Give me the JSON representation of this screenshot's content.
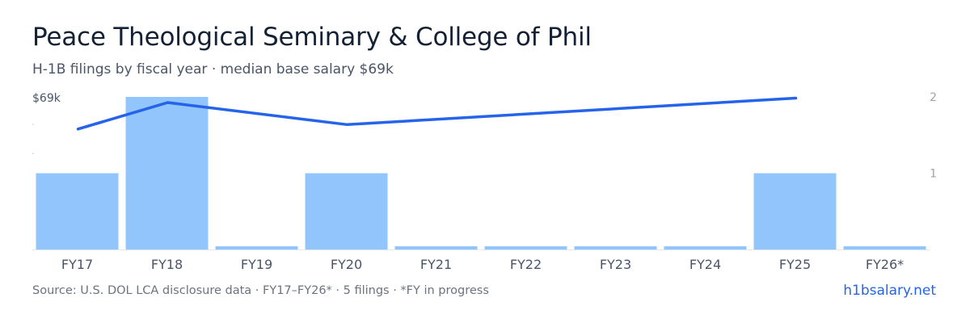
{
  "header": {
    "title": "Peace Theological Seminary & College of Phil",
    "subtitle": "H-1B filings by fiscal year · median base salary $69k"
  },
  "footer": {
    "source": "Source: U.S. DOL LCA disclosure data · FY17–FY26* · 5 filings · *FY in progress",
    "brand": "h1bsalary.net"
  },
  "colors": {
    "bar": "#93c5fd",
    "line": "#2563eb",
    "axis_text": "#4a5568",
    "right_axis_text": "#9ca3af",
    "baseline": "#e5e7eb"
  },
  "chart_data": {
    "type": "bar",
    "categories": [
      "FY17",
      "FY18",
      "FY19",
      "FY20",
      "FY21",
      "FY22",
      "FY23",
      "FY24",
      "FY25",
      "FY26*"
    ],
    "series": [
      {
        "type": "bar",
        "axis": "right",
        "values": [
          1,
          2,
          0,
          1,
          0,
          0,
          0,
          0,
          1,
          0
        ]
      },
      {
        "type": "line",
        "axis": "left",
        "points": [
          {
            "x": "FY17",
            "y": 0.82
          },
          {
            "x": "FY18",
            "y": 1.0
          },
          {
            "x": "FY20",
            "y": 0.85
          },
          {
            "x": "FY25",
            "y": 1.03
          }
        ]
      }
    ],
    "left_axis": {
      "tick_labels": [
        "$69k"
      ],
      "max": 1.0
    },
    "right_axis": {
      "tick_labels": [
        "2",
        "1"
      ],
      "ylim": [
        0,
        2
      ]
    },
    "grid": false,
    "legend": "none"
  }
}
